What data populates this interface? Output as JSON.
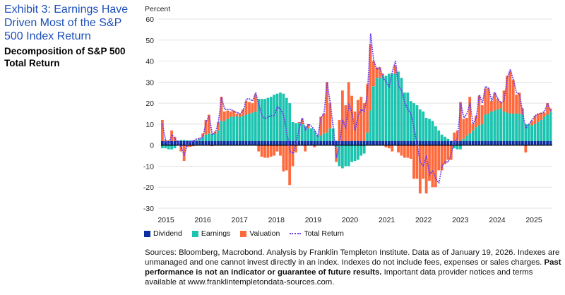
{
  "title": "Exhibit 3: Earnings Have Driven Most of the S&P 500 Index Return",
  "subtitle": "Decomposition of S&P 500 Total Return",
  "chart_data": {
    "type": "bar",
    "stacked": true,
    "ylabel": "Percent",
    "ylim": [
      -30,
      60
    ],
    "yticks": [
      60,
      50,
      40,
      30,
      20,
      10,
      0,
      -10,
      -20,
      -30
    ],
    "grid": true,
    "legend_position": "bottom-left",
    "x_start": "2015-01",
    "x_frequency": "monthly",
    "xticks": [
      "2015",
      "2016",
      "2017",
      "2018",
      "2019",
      "2020",
      "2021",
      "2022",
      "2023",
      "2024",
      "2025"
    ],
    "colors": {
      "Dividend": "#0b2fa0",
      "Earnings": "#1cc4b0",
      "Valuation": "#ff6a3d",
      "Total Return": "#6a3de8"
    },
    "series": [
      {
        "name": "Dividend",
        "type": "bar",
        "values": [
          2,
          2,
          2,
          2,
          2,
          2,
          2,
          2,
          2,
          2,
          2,
          2,
          2,
          2,
          2,
          2,
          2,
          2,
          2,
          2,
          2,
          2,
          2,
          2,
          2,
          2,
          2,
          2,
          2,
          2,
          2,
          2,
          2,
          2,
          2,
          2,
          2,
          2,
          2,
          2,
          2,
          2,
          2,
          2,
          2,
          2,
          2,
          2,
          2,
          2,
          2,
          2,
          2,
          2,
          2,
          2,
          2,
          2,
          2,
          2,
          2,
          2,
          2,
          2,
          2,
          2,
          2,
          2,
          2,
          2,
          2,
          2,
          2,
          2,
          2,
          2,
          2,
          2,
          2,
          2,
          2,
          2,
          2,
          2,
          2,
          2,
          2,
          2,
          2,
          2,
          2,
          2,
          2,
          2,
          2,
          2,
          2,
          2,
          2,
          2,
          2,
          2,
          2,
          2,
          2,
          2,
          2,
          2,
          2,
          2,
          2,
          2,
          2,
          2,
          2,
          2,
          2,
          2,
          2,
          2,
          2,
          2,
          2,
          2,
          2,
          2
        ]
      },
      {
        "name": "Earnings",
        "type": "bar",
        "values": [
          -1.5,
          -1.5,
          -2,
          -2,
          -1.5,
          0,
          0.5,
          0.5,
          0.3,
          0.3,
          0.3,
          0.3,
          1,
          2,
          3,
          3.5,
          3.5,
          3.5,
          5,
          9.5,
          9.5,
          10.5,
          11.5,
          11.5,
          11.8,
          11.5,
          12,
          12.5,
          13,
          13.5,
          14,
          20,
          20,
          20,
          20.5,
          21,
          22,
          22.5,
          23,
          22.5,
          20.5,
          18,
          9,
          8.5,
          8.5,
          8,
          7,
          6,
          6,
          5,
          3,
          2.5,
          3.5,
          4,
          6,
          6,
          -1,
          -10,
          -11,
          -10,
          -10,
          -8,
          -7.5,
          -7,
          -5,
          -4,
          4,
          14.5,
          26,
          30,
          30,
          31,
          31,
          32,
          32,
          32,
          33,
          30,
          23,
          23,
          19,
          18,
          17,
          15,
          14,
          11,
          10.5,
          9.5,
          7,
          5,
          3,
          2,
          1,
          0,
          -1.5,
          -2,
          -2,
          1,
          2.5,
          3.5,
          5,
          6.5,
          7.5,
          8,
          12.5,
          13,
          14,
          14.5,
          15,
          15.5,
          14,
          13.5,
          13,
          13,
          13,
          13,
          12.5,
          8,
          8,
          7.5,
          8,
          9,
          10,
          11.5,
          12.5,
          14
        ]
      },
      {
        "name": "Valuation",
        "type": "bar",
        "values": [
          10,
          0.5,
          0.3,
          5,
          2,
          0.2,
          -3,
          -7.5,
          -1,
          -0.8,
          -0.5,
          0.2,
          0.5,
          1.5,
          7,
          9,
          -0.5,
          1,
          4,
          11.5,
          4.5,
          4,
          2.5,
          3,
          1.2,
          1.5,
          3,
          6.5,
          5.5,
          4.5,
          8,
          -3,
          -5.5,
          -6,
          -6,
          -5.5,
          -5,
          -3,
          -5,
          -12.5,
          -12,
          -19,
          -10,
          -3.5,
          0.5,
          2.5,
          -3,
          2,
          0,
          -1,
          0,
          9,
          9.5,
          24,
          12,
          0,
          -7,
          10,
          24,
          17,
          28,
          21.5,
          14,
          19.5,
          21,
          18,
          23,
          31.5,
          12,
          5,
          5,
          1,
          -1,
          -1.5,
          -3,
          4,
          -3.5,
          -5,
          -6,
          -6,
          -6.5,
          -16,
          -16,
          -23,
          -16,
          -23,
          -17,
          -20,
          -20,
          -12,
          -12,
          -9,
          -7,
          -7,
          4,
          5,
          18.5,
          9.5,
          8.5,
          17.5,
          3,
          5.5,
          14,
          9,
          12.5,
          12,
          5,
          8.5,
          5,
          3,
          10,
          17.5,
          20,
          16,
          9,
          10,
          3,
          -3.5,
          0,
          2,
          4,
          4,
          3.5,
          2,
          5.5,
          1.5
        ]
      },
      {
        "name": "Total Return",
        "type": "line",
        "values": [
          10,
          2,
          0.5,
          5,
          3,
          1,
          -1,
          -5,
          1,
          1.5,
          2,
          3,
          3,
          4,
          11,
          14,
          5,
          6,
          11,
          23,
          17,
          17,
          17,
          16,
          15.5,
          15,
          16.5,
          22,
          22,
          21,
          25,
          19,
          14,
          12.5,
          13.5,
          14,
          14,
          18.5,
          17,
          14,
          6,
          -3,
          -4,
          1,
          8,
          13,
          7,
          10,
          9,
          7,
          4,
          13,
          15,
          30,
          20,
          8,
          -6,
          0,
          12,
          8,
          20,
          15,
          7,
          14,
          17,
          16,
          25,
          53,
          40,
          36,
          37,
          32,
          30,
          28,
          35,
          40,
          28,
          26,
          20,
          17,
          15,
          8,
          0,
          -8,
          -10,
          -5,
          -14,
          -12,
          -16,
          -18,
          -10,
          -8,
          -8,
          -4,
          2,
          3,
          20,
          13,
          15,
          20,
          10,
          13,
          24,
          20,
          28,
          27,
          21,
          25,
          22,
          20,
          21,
          32,
          36,
          31,
          25,
          24,
          15,
          8,
          10,
          12,
          14,
          15,
          15,
          16,
          20,
          16
        ]
      }
    ]
  },
  "legend": [
    {
      "label": "Dividend"
    },
    {
      "label": "Earnings"
    },
    {
      "label": "Valuation"
    },
    {
      "label": "Total Return"
    }
  ],
  "sources": {
    "text1": "Sources: Bloomberg, Macrobond. Analysis by Franklin Templeton Institute. Data as of January 19, 2026. Indexes are unmanaged and one cannot invest directly in an index. Indexes do not include fees, expenses or sales charges. ",
    "bold": "Past performance is not an indicator or guarantee of future results.",
    "text2": " Important data provider notices and terms available at www.franklintempletondata-sources.com."
  }
}
